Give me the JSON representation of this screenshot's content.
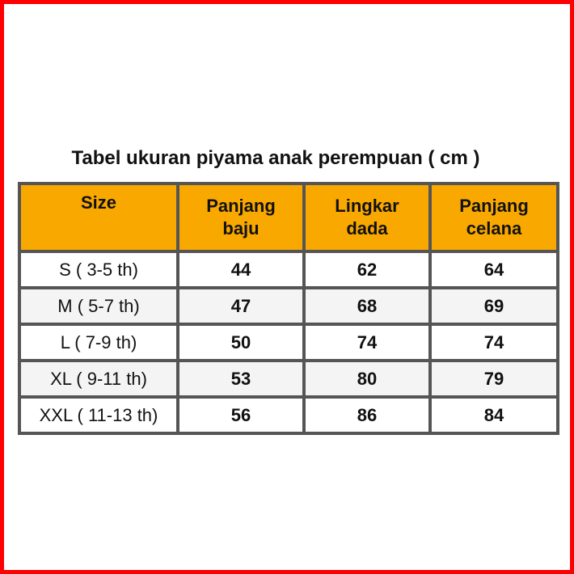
{
  "title": "Tabel ukuran piyama anak perempuan ( cm )",
  "colors": {
    "header_bg": "#f9a800",
    "frame": "#ff0000",
    "border": "#555555"
  },
  "headers": [
    {
      "line1": "Size",
      "line2": ""
    },
    {
      "line1": "Panjang",
      "line2": "baju"
    },
    {
      "line1": "Lingkar",
      "line2": "dada"
    },
    {
      "line1": "Panjang",
      "line2": "celana"
    }
  ],
  "rows": [
    {
      "size": "S ( 3-5 th)",
      "panjang_baju": "44",
      "lingkar_dada": "62",
      "panjang_celana": "64"
    },
    {
      "size": "M ( 5-7 th)",
      "panjang_baju": "47",
      "lingkar_dada": "68",
      "panjang_celana": "69"
    },
    {
      "size": "L ( 7-9 th)",
      "panjang_baju": "50",
      "lingkar_dada": "74",
      "panjang_celana": "74"
    },
    {
      "size": "XL ( 9-11 th)",
      "panjang_baju": "53",
      "lingkar_dada": "80",
      "panjang_celana": "79"
    },
    {
      "size": "XXL ( 11-13 th)",
      "panjang_baju": "56",
      "lingkar_dada": "86",
      "panjang_celana": "84"
    }
  ]
}
